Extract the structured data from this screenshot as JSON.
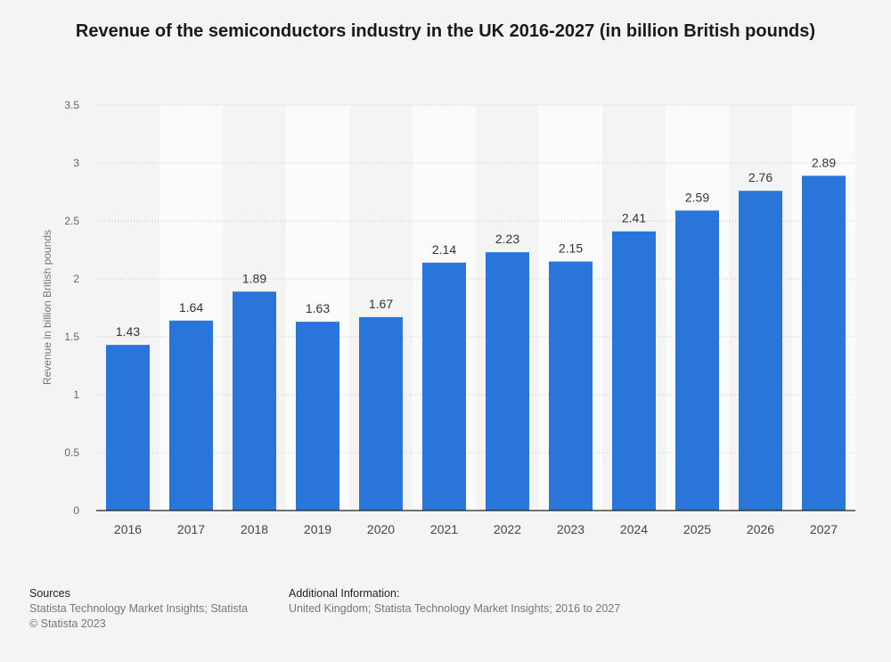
{
  "chart_data": {
    "type": "bar",
    "title": "Revenue of the semiconductors industry in the UK 2016-2027 (in billion British pounds)",
    "ylabel": "Revenue in billion British pounds",
    "xlabel": "",
    "categories": [
      "2016",
      "2017",
      "2018",
      "2019",
      "2020",
      "2021",
      "2022",
      "2023",
      "2024",
      "2025",
      "2026",
      "2027"
    ],
    "values": [
      1.43,
      1.64,
      1.89,
      1.63,
      1.67,
      2.14,
      2.23,
      2.15,
      2.41,
      2.59,
      2.76,
      2.89
    ],
    "value_labels": [
      "1.43",
      "1.64",
      "1.89",
      "1.63",
      "1.67",
      "2.14",
      "2.23",
      "2.15",
      "2.41",
      "2.59",
      "2.76",
      "2.89"
    ],
    "ylim": [
      0,
      3.5
    ],
    "yticks": [
      0,
      0.5,
      1,
      1.5,
      2,
      2.5,
      3,
      3.5
    ],
    "ytick_labels": [
      "0",
      "0.5",
      "1",
      "1.5",
      "2",
      "2.5",
      "3",
      "3.5"
    ],
    "grid": true,
    "bar_color": "#2a75d9"
  },
  "footer": {
    "sources_heading": "Sources",
    "sources_line1": "Statista Technology Market Insights; Statista",
    "sources_line2": "© Statista 2023",
    "info_heading": "Additional Information:",
    "info_line1": "United Kingdom; Statista Technology Market Insights; 2016 to 2027"
  }
}
